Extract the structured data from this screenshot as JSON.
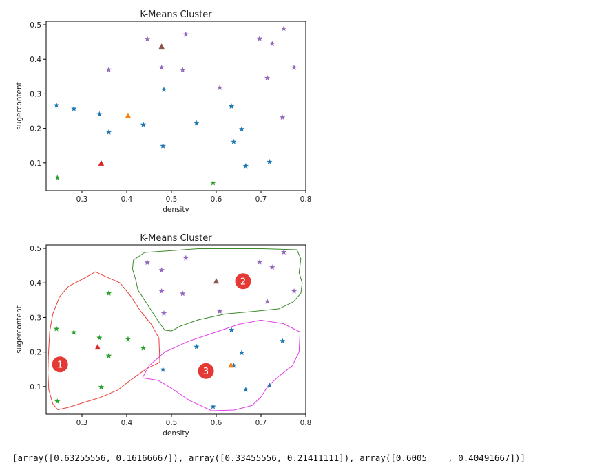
{
  "output_text": "[array([0.63255556, 0.16166667]), array([0.33455556, 0.21411111]), array([0.6005    , 0.40491667])]",
  "colors": {
    "blue": "#1f77b4",
    "orange": "#ff7f0e",
    "green": "#2ca02c",
    "red": "#d62728",
    "purple": "#9467bd",
    "brown": "#8c564b",
    "badge": "#e53935",
    "outline_red": "#e8403a",
    "outline_green": "#3a8a2a",
    "outline_magenta": "#e23ee6"
  },
  "chart_data": [
    {
      "type": "scatter",
      "title": "K-Means Cluster",
      "xlabel": "density",
      "ylabel": "sugercontent",
      "xlim": [
        0.22,
        0.8
      ],
      "ylim": [
        0.02,
        0.51
      ],
      "xticks": [
        "0.3",
        "0.4",
        "0.5",
        "0.6",
        "0.7",
        "0.8"
      ],
      "yticks": [
        "0.1",
        "0.2",
        "0.3",
        "0.4",
        "0.5"
      ],
      "series": [
        {
          "color": "blue",
          "marker": "star",
          "points": [
            [
              0.243,
              0.267
            ],
            [
              0.282,
              0.257
            ],
            [
              0.339,
              0.241
            ],
            [
              0.36,
              0.189
            ],
            [
              0.437,
              0.211
            ],
            [
              0.481,
              0.149
            ],
            [
              0.483,
              0.312
            ],
            [
              0.556,
              0.215
            ],
            [
              0.634,
              0.264
            ],
            [
              0.639,
              0.161
            ],
            [
              0.657,
              0.198
            ],
            [
              0.666,
              0.091
            ],
            [
              0.719,
              0.103
            ]
          ]
        },
        {
          "color": "purple",
          "marker": "star",
          "points": [
            [
              0.36,
              0.37
            ],
            [
              0.446,
              0.459
            ],
            [
              0.478,
              0.376
            ],
            [
              0.525,
              0.369
            ],
            [
              0.532,
              0.472
            ],
            [
              0.608,
              0.318
            ],
            [
              0.697,
              0.46
            ],
            [
              0.714,
              0.346
            ],
            [
              0.725,
              0.445
            ],
            [
              0.748,
              0.232
            ],
            [
              0.751,
              0.489
            ],
            [
              0.774,
              0.376
            ]
          ]
        },
        {
          "color": "green",
          "marker": "star",
          "points": [
            [
              0.245,
              0.057
            ],
            [
              0.593,
              0.042
            ]
          ]
        },
        {
          "color": "orange",
          "marker": "triangle",
          "points": [
            [
              0.403,
              0.237
            ]
          ]
        },
        {
          "color": "red",
          "marker": "triangle",
          "points": [
            [
              0.343,
              0.099
            ]
          ]
        },
        {
          "color": "brown",
          "marker": "triangle",
          "points": [
            [
              0.478,
              0.437
            ]
          ]
        }
      ]
    },
    {
      "type": "scatter",
      "title": "K-Means Cluster",
      "xlabel": "density",
      "ylabel": "sugercontent",
      "xlim": [
        0.22,
        0.8
      ],
      "ylim": [
        0.02,
        0.51
      ],
      "xticks": [
        "0.3",
        "0.4",
        "0.5",
        "0.6",
        "0.7",
        "0.8"
      ],
      "yticks": [
        "0.1",
        "0.2",
        "0.3",
        "0.4",
        "0.5"
      ],
      "series": [
        {
          "color": "blue",
          "marker": "star",
          "points": [
            [
              0.481,
              0.149
            ],
            [
              0.556,
              0.215
            ],
            [
              0.634,
              0.264
            ],
            [
              0.639,
              0.161
            ],
            [
              0.657,
              0.198
            ],
            [
              0.666,
              0.091
            ],
            [
              0.719,
              0.103
            ],
            [
              0.593,
              0.042
            ],
            [
              0.748,
              0.232
            ]
          ]
        },
        {
          "color": "green",
          "marker": "star",
          "points": [
            [
              0.243,
              0.267
            ],
            [
              0.282,
              0.257
            ],
            [
              0.339,
              0.241
            ],
            [
              0.36,
              0.189
            ],
            [
              0.403,
              0.237
            ],
            [
              0.437,
              0.211
            ],
            [
              0.36,
              0.37
            ],
            [
              0.343,
              0.099
            ],
            [
              0.245,
              0.057
            ]
          ]
        },
        {
          "color": "purple",
          "marker": "star",
          "points": [
            [
              0.446,
              0.459
            ],
            [
              0.478,
              0.437
            ],
            [
              0.478,
              0.376
            ],
            [
              0.525,
              0.369
            ],
            [
              0.532,
              0.472
            ],
            [
              0.483,
              0.312
            ],
            [
              0.608,
              0.318
            ],
            [
              0.697,
              0.46
            ],
            [
              0.714,
              0.346
            ],
            [
              0.725,
              0.445
            ],
            [
              0.751,
              0.489
            ],
            [
              0.774,
              0.376
            ]
          ]
        },
        {
          "color": "orange",
          "marker": "triangle",
          "points": [
            [
              0.633,
              0.162
            ]
          ]
        },
        {
          "color": "red",
          "marker": "triangle",
          "points": [
            [
              0.335,
              0.214
            ]
          ]
        },
        {
          "color": "brown",
          "marker": "triangle",
          "points": [
            [
              0.6,
              0.405
            ]
          ]
        }
      ],
      "annotations": [
        {
          "label": "1",
          "x": 0.251,
          "y": 0.164
        },
        {
          "label": "2",
          "x": 0.66,
          "y": 0.405
        },
        {
          "label": "3",
          "x": 0.577,
          "y": 0.145
        }
      ],
      "cluster_outlines": [
        {
          "color": "outline_red",
          "points": [
            [
              0.225,
              0.19
            ],
            [
              0.228,
              0.26
            ],
            [
              0.235,
              0.31
            ],
            [
              0.25,
              0.36
            ],
            [
              0.27,
              0.39
            ],
            [
              0.3,
              0.41
            ],
            [
              0.33,
              0.432
            ],
            [
              0.35,
              0.42
            ],
            [
              0.385,
              0.4
            ],
            [
              0.41,
              0.36
            ],
            [
              0.43,
              0.32
            ],
            [
              0.455,
              0.28
            ],
            [
              0.472,
              0.24
            ],
            [
              0.474,
              0.17
            ],
            [
              0.445,
              0.152
            ],
            [
              0.41,
              0.12
            ],
            [
              0.38,
              0.09
            ],
            [
              0.34,
              0.068
            ],
            [
              0.3,
              0.052
            ],
            [
              0.27,
              0.04
            ],
            [
              0.246,
              0.033
            ],
            [
              0.235,
              0.05
            ],
            [
              0.226,
              0.09
            ],
            [
              0.224,
              0.14
            ]
          ]
        },
        {
          "color": "outline_green",
          "points": [
            [
              0.415,
              0.466
            ],
            [
              0.44,
              0.488
            ],
            [
              0.56,
              0.499
            ],
            [
              0.7,
              0.499
            ],
            [
              0.78,
              0.496
            ],
            [
              0.789,
              0.47
            ],
            [
              0.785,
              0.43
            ],
            [
              0.792,
              0.4
            ],
            [
              0.789,
              0.37
            ],
            [
              0.772,
              0.345
            ],
            [
              0.74,
              0.325
            ],
            [
              0.68,
              0.317
            ],
            [
              0.62,
              0.31
            ],
            [
              0.56,
              0.293
            ],
            [
              0.52,
              0.275
            ],
            [
              0.5,
              0.261
            ],
            [
              0.485,
              0.263
            ],
            [
              0.47,
              0.29
            ],
            [
              0.455,
              0.32
            ],
            [
              0.44,
              0.35
            ],
            [
              0.425,
              0.38
            ],
            [
              0.42,
              0.41
            ],
            [
              0.413,
              0.44
            ]
          ]
        },
        {
          "color": "outline_magenta",
          "points": [
            [
              0.435,
              0.125
            ],
            [
              0.45,
              0.16
            ],
            [
              0.485,
              0.2
            ],
            [
              0.54,
              0.232
            ],
            [
              0.6,
              0.258
            ],
            [
              0.65,
              0.28
            ],
            [
              0.7,
              0.292
            ],
            [
              0.75,
              0.282
            ],
            [
              0.787,
              0.258
            ],
            [
              0.785,
              0.2
            ],
            [
              0.77,
              0.16
            ],
            [
              0.74,
              0.13
            ],
            [
              0.715,
              0.1
            ],
            [
              0.7,
              0.07
            ],
            [
              0.68,
              0.045
            ],
            [
              0.64,
              0.032
            ],
            [
              0.59,
              0.03
            ],
            [
              0.54,
              0.06
            ],
            [
              0.5,
              0.095
            ],
            [
              0.47,
              0.118
            ]
          ]
        }
      ]
    }
  ]
}
